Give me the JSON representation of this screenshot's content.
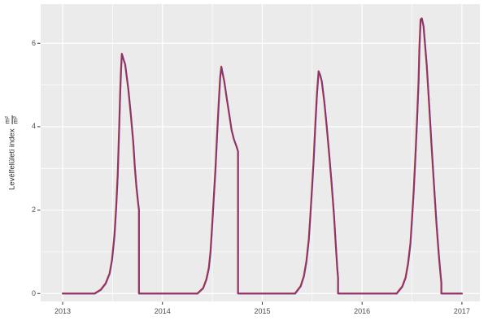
{
  "figure": {
    "background": "#ffffff",
    "panel_background": "#ebebeb",
    "grid_color": "#ffffff",
    "tick_mark_color": "#333333",
    "tick_label_color": "#4d4d4d"
  },
  "y_axis_title": {
    "text": "Levélfelületi index",
    "frac_num": "m²",
    "frac_den": "m²"
  },
  "chart_data": {
    "type": "line",
    "title": "",
    "xlabel": "",
    "ylabel": "Levélfelületi index (m²/m²)",
    "grid": "major+minor",
    "legend": "none",
    "xlim": [
      2012.78,
      2017.18
    ],
    "ylim": [
      -0.19,
      6.94
    ],
    "x_ticks_major": [
      2013,
      2014,
      2015,
      2016,
      2017
    ],
    "x_ticks_minor": [
      2013.5,
      2014.5,
      2015.5,
      2016.5
    ],
    "y_ticks_major": [
      0,
      2,
      4,
      6
    ],
    "y_ticks_minor": [
      1,
      3,
      5
    ],
    "x_tick_labels": [
      "2013",
      "2014",
      "2015",
      "2016",
      "2017"
    ],
    "y_tick_labels": [
      "0",
      "2",
      "4",
      "6"
    ],
    "season_peaks": [
      5.75,
      5.44,
      5.33,
      6.6
    ],
    "points": [
      [
        2013.0,
        0
      ],
      [
        2013.32,
        0
      ],
      [
        2013.381,
        0.09
      ],
      [
        2013.43,
        0.24
      ],
      [
        2013.47,
        0.48
      ],
      [
        2013.495,
        0.81
      ],
      [
        2013.519,
        1.39
      ],
      [
        2013.536,
        2.07
      ],
      [
        2013.552,
        2.85
      ],
      [
        2013.568,
        4.11
      ],
      [
        2013.576,
        4.8
      ],
      [
        2013.585,
        5.38
      ],
      [
        2013.593,
        5.75
      ],
      [
        2013.61,
        5.61
      ],
      [
        2013.626,
        5.5
      ],
      [
        2013.658,
        4.89
      ],
      [
        2013.682,
        4.31
      ],
      [
        2013.707,
        3.63
      ],
      [
        2013.723,
        3.04
      ],
      [
        2013.739,
        2.56
      ],
      [
        2013.756,
        2.17
      ],
      [
        2013.764,
        2.01
      ],
      [
        2013.764,
        0
      ],
      [
        2014.35,
        0
      ],
      [
        2014.407,
        0.13
      ],
      [
        2014.44,
        0.34
      ],
      [
        2014.464,
        0.61
      ],
      [
        2014.481,
        1.0
      ],
      [
        2014.497,
        1.59
      ],
      [
        2014.513,
        2.27
      ],
      [
        2014.53,
        2.95
      ],
      [
        2014.546,
        3.73
      ],
      [
        2014.562,
        4.5
      ],
      [
        2014.578,
        5.19
      ],
      [
        2014.59,
        5.44
      ],
      [
        2014.603,
        5.28
      ],
      [
        2014.619,
        5.09
      ],
      [
        2014.643,
        4.7
      ],
      [
        2014.668,
        4.31
      ],
      [
        2014.692,
        3.92
      ],
      [
        2014.717,
        3.69
      ],
      [
        2014.741,
        3.53
      ],
      [
        2014.757,
        3.41
      ],
      [
        2014.757,
        0
      ],
      [
        2015.328,
        0
      ],
      [
        2015.385,
        0.18
      ],
      [
        2015.417,
        0.42
      ],
      [
        2015.442,
        0.77
      ],
      [
        2015.466,
        1.29
      ],
      [
        2015.482,
        1.88
      ],
      [
        2015.499,
        2.56
      ],
      [
        2015.515,
        3.24
      ],
      [
        2015.531,
        4.02
      ],
      [
        2015.548,
        4.8
      ],
      [
        2015.564,
        5.33
      ],
      [
        2015.58,
        5.24
      ],
      [
        2015.596,
        5.09
      ],
      [
        2015.621,
        4.6
      ],
      [
        2015.645,
        4.02
      ],
      [
        2015.67,
        3.34
      ],
      [
        2015.694,
        2.66
      ],
      [
        2015.718,
        1.88
      ],
      [
        2015.735,
        1.2
      ],
      [
        2015.751,
        0.61
      ],
      [
        2015.759,
        0.38
      ],
      [
        2015.759,
        0
      ],
      [
        2016.346,
        0
      ],
      [
        2016.403,
        0.17
      ],
      [
        2016.435,
        0.38
      ],
      [
        2016.46,
        0.71
      ],
      [
        2016.484,
        1.2
      ],
      [
        2016.5,
        1.78
      ],
      [
        2016.517,
        2.46
      ],
      [
        2016.533,
        3.24
      ],
      [
        2016.549,
        4.11
      ],
      [
        2016.566,
        5.09
      ],
      [
        2016.574,
        5.87
      ],
      [
        2016.586,
        6.57
      ],
      [
        2016.598,
        6.6
      ],
      [
        2016.615,
        6.41
      ],
      [
        2016.631,
        5.96
      ],
      [
        2016.647,
        5.48
      ],
      [
        2016.672,
        4.5
      ],
      [
        2016.696,
        3.53
      ],
      [
        2016.721,
        2.56
      ],
      [
        2016.745,
        1.68
      ],
      [
        2016.769,
        0.9
      ],
      [
        2016.786,
        0.46
      ],
      [
        2016.794,
        0.26
      ],
      [
        2016.794,
        0
      ],
      [
        2017.0,
        0
      ]
    ],
    "strokes": [
      {
        "name": "lai-line-red",
        "color": "#c03030",
        "width": 2.2,
        "opacity": 1.0,
        "dx": 0,
        "dy": 0
      },
      {
        "name": "lai-line-blue",
        "color": "#4040c0",
        "width": 1.3,
        "opacity": 0.62,
        "dx": 0.5,
        "dy": 0.6
      }
    ]
  }
}
